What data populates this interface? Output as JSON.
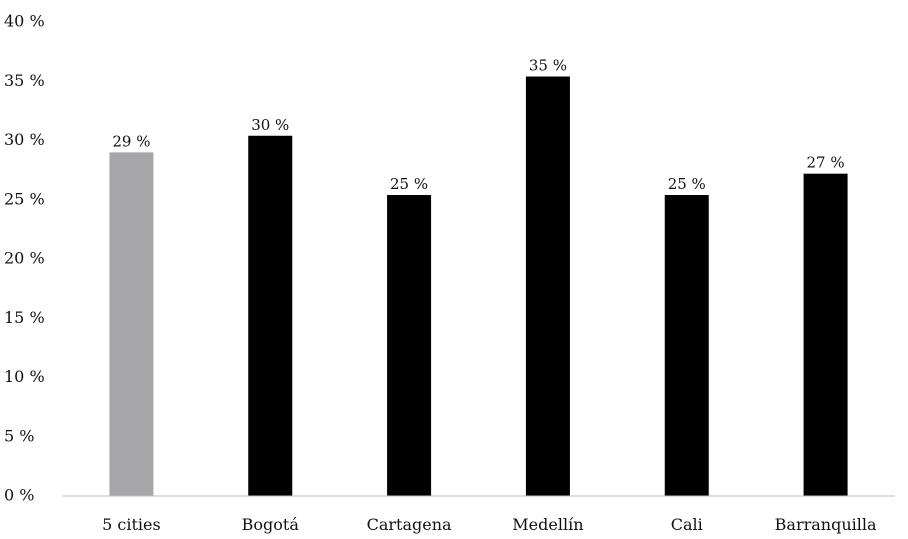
{
  "chart_data": {
    "type": "bar",
    "categories": [
      "5 cities",
      "Bogotá",
      "Cartagena",
      "Medellín",
      "Cali",
      "Barranquilla"
    ],
    "values": [
      29,
      30.4,
      25.4,
      35.4,
      25.4,
      27.2
    ],
    "data_labels": [
      "29 %",
      "30 %",
      "25 %",
      "35 %",
      "25 %",
      "27 %"
    ],
    "bar_colors": [
      "#a6a6a8",
      "#000000",
      "#000000",
      "#000000",
      "#000000",
      "#000000"
    ],
    "y_ticks": [
      0,
      5,
      10,
      15,
      20,
      25,
      30,
      35,
      40
    ],
    "y_tick_labels": [
      "0 %",
      "5 %",
      "10 %",
      "15 %",
      "20 %",
      "25 %",
      "30 %",
      "35 %",
      "40 %"
    ],
    "ylim": [
      0,
      40
    ],
    "grid": false,
    "legend": "none",
    "title": "",
    "xlabel": "",
    "ylabel": ""
  }
}
